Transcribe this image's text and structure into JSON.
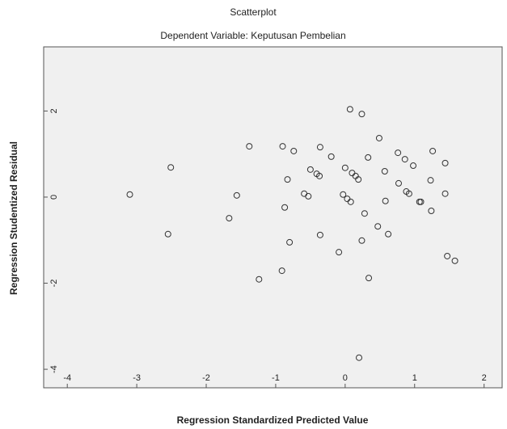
{
  "chart_data": {
    "type": "scatter",
    "title": "Scatterplot",
    "subtitle": "Dependent Variable: Keputusan Pembelian",
    "xlabel": "Regression Standardized Predicted Value",
    "ylabel": "Regression Studentized Residual",
    "x": [
      0.07,
      0.24,
      0.49,
      -3.1,
      -2.51,
      -2.55,
      -1.38,
      -1.56,
      -1.67,
      -1.24,
      -0.9,
      -0.74,
      -0.83,
      -0.87,
      -0.59,
      -0.53,
      -0.8,
      -0.91,
      -0.36,
      -0.2,
      -0.5,
      -0.41,
      -0.37,
      -0.36,
      -0.09,
      0,
      0.1,
      0.15,
      0.19,
      -0.03,
      0.03,
      0.08,
      0.28,
      0.33,
      0.34,
      0.24,
      0.2,
      0.47,
      0.57,
      0.58,
      0.62,
      0.76,
      0.77,
      0.86,
      0.88,
      0.92,
      0.98,
      1.07,
      1.09,
      1.23,
      1.24,
      1.26,
      1.44,
      1.44,
      1.47,
      1.58
    ],
    "y": [
      2.04,
      1.93,
      1.37,
      0.06,
      0.69,
      -0.86,
      1.18,
      0.04,
      -0.49,
      -1.91,
      1.18,
      1.07,
      0.41,
      -0.24,
      0.08,
      0.02,
      -1.05,
      -1.71,
      1.16,
      0.94,
      0.64,
      0.54,
      0.49,
      -0.88,
      -1.28,
      0.68,
      0.56,
      0.49,
      0.41,
      0.06,
      -0.04,
      -0.11,
      -0.38,
      0.92,
      -1.88,
      -1.01,
      -3.73,
      -0.68,
      0.6,
      -0.09,
      -0.86,
      1.03,
      0.32,
      0.88,
      0.13,
      0.08,
      0.73,
      -0.11,
      -0.11,
      0.39,
      -0.32,
      1.07,
      0.79,
      0.08,
      -1.37,
      -1.48
    ],
    "xlim": [
      -4.34,
      2.26
    ],
    "ylim": [
      -4.43,
      3.49
    ],
    "xticks": [
      -4,
      -3,
      -2,
      -1,
      0,
      1,
      2
    ],
    "yticks": [
      -4,
      -2,
      0,
      2
    ],
    "color": "#333333",
    "background": "#f0f0f0"
  }
}
